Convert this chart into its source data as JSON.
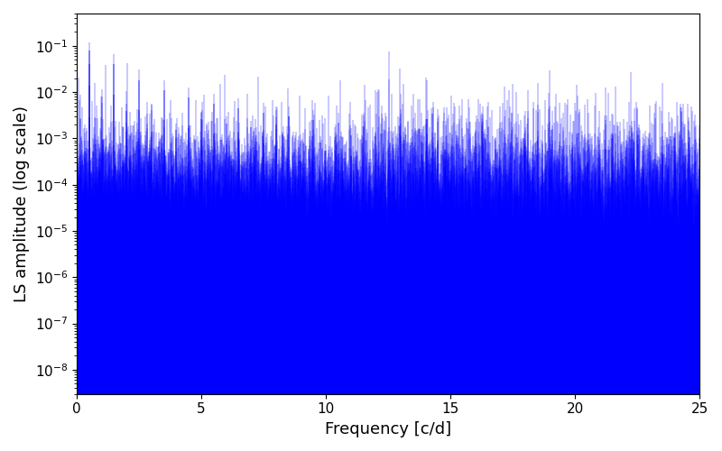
{
  "xlabel": "Frequency [c/d]",
  "ylabel": "LS amplitude (log scale)",
  "xlim": [
    0,
    25
  ],
  "ylim": [
    3e-09,
    0.5
  ],
  "line_color": "#0000ff",
  "background_color": "#ffffff",
  "freq_max": 25.0,
  "n_points": 15000,
  "seed": 17
}
